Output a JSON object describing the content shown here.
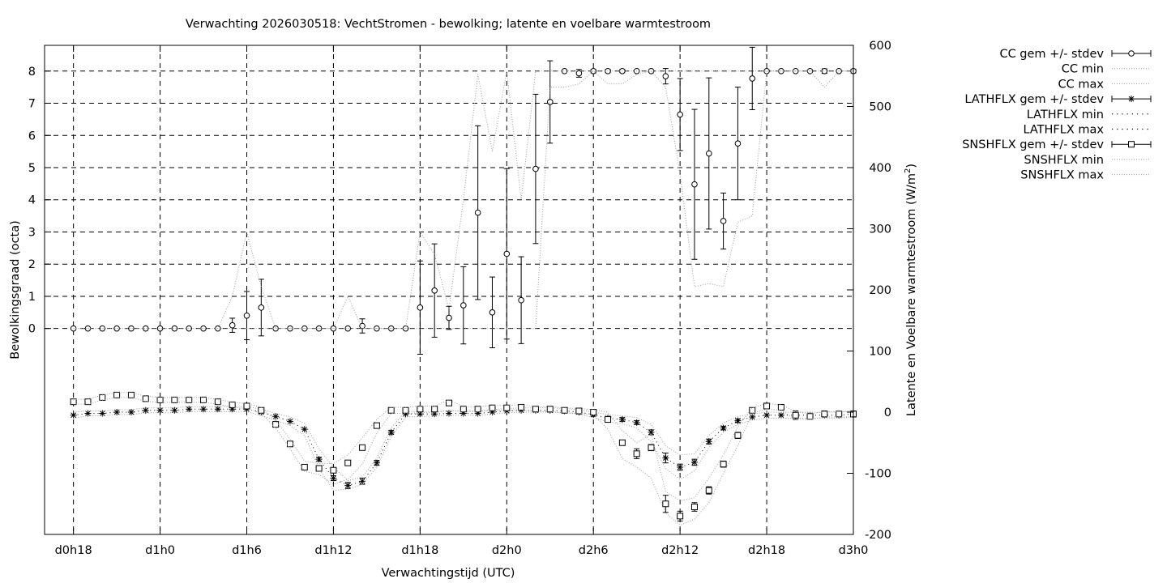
{
  "chart_data": {
    "type": "line",
    "title": "Verwachting 2026030518: VechtStromen - bewolking; latente en voelbare warmtestroom",
    "xlabel": "Verwachtingstijd (UTC)",
    "ylabel_left": "Bewolkingsgraad (octa)",
    "ylabel_right_prefix": "Latente en Voelbare warmtestroom (W/m",
    "ylabel_right_sup": "2",
    "ylabel_right_suffix": ")",
    "x_unit": "hours since d0h00",
    "xlim": [
      16,
      72
    ],
    "ylim_left": [
      -6.4,
      8.8
    ],
    "ylim_right": [
      -200,
      600
    ],
    "grid": true,
    "legend_position": "outside-right",
    "x_ticks": [
      {
        "value": 18,
        "label": "d0h18"
      },
      {
        "value": 24,
        "label": "d1h0"
      },
      {
        "value": 30,
        "label": "d1h6"
      },
      {
        "value": 36,
        "label": "d1h12"
      },
      {
        "value": 42,
        "label": "d1h18"
      },
      {
        "value": 48,
        "label": "d2h0"
      },
      {
        "value": 54,
        "label": "d2h6"
      },
      {
        "value": 60,
        "label": "d2h12"
      },
      {
        "value": 66,
        "label": "d2h18"
      },
      {
        "value": 72,
        "label": "d3h0"
      }
    ],
    "y_ticks_left": [
      "0",
      "1",
      "2",
      "3",
      "4",
      "5",
      "6",
      "7",
      "8"
    ],
    "y_ticks_right": [
      "-200",
      "-100",
      "0",
      "100",
      "200",
      "300",
      "400",
      "500",
      "600"
    ],
    "x": [
      18,
      19,
      20,
      21,
      22,
      23,
      24,
      25,
      26,
      27,
      28,
      29,
      30,
      31,
      32,
      33,
      34,
      35,
      36,
      37,
      38,
      39,
      40,
      41,
      42,
      43,
      44,
      45,
      46,
      47,
      48,
      49,
      50,
      51,
      52,
      53,
      54,
      55,
      56,
      57,
      58,
      59,
      60,
      61,
      62,
      63,
      64,
      65,
      66,
      67,
      68,
      69,
      70,
      71,
      72
    ],
    "series": [
      {
        "name": "CC gem +/- stdev",
        "axis": "left",
        "marker": "circle",
        "values": [
          0,
          0,
          0,
          0,
          0,
          0,
          0,
          0,
          0,
          0,
          0,
          0.1,
          0.4,
          0.65,
          0,
          0,
          0,
          0,
          0,
          0,
          0.08,
          0,
          0,
          0,
          0.65,
          1.18,
          0.33,
          0.72,
          3.6,
          0.5,
          2.32,
          0.88,
          4.96,
          7.04,
          8,
          7.93,
          8,
          8,
          8,
          8,
          8,
          7.84,
          6.65,
          4.48,
          5.44,
          3.34,
          5.75,
          7.77,
          8,
          8,
          8,
          8,
          8,
          8,
          8
        ],
        "err": [
          0,
          0,
          0,
          0,
          0,
          0,
          0,
          0,
          0,
          0,
          0,
          0.22,
          0.75,
          0.88,
          0,
          0,
          0,
          0,
          0,
          0,
          0.22,
          0,
          0,
          0,
          1.45,
          1.45,
          0.36,
          1.2,
          2.7,
          1.1,
          2.65,
          1.35,
          2.32,
          1.28,
          0,
          0.12,
          0.05,
          0.05,
          0.05,
          0,
          0,
          0.24,
          1.12,
          2.33,
          2.35,
          0.87,
          1.75,
          0.97,
          0,
          0,
          0,
          0,
          0.07,
          0,
          0.06
        ]
      },
      {
        "name": "CC min",
        "axis": "left",
        "values": [
          0,
          0,
          0,
          0,
          0,
          0,
          0,
          0,
          0,
          0,
          0,
          0,
          0,
          0,
          0,
          0,
          0,
          0,
          0,
          0,
          0,
          0,
          0,
          0,
          0,
          0,
          0,
          0,
          0,
          0,
          0,
          0,
          0,
          7.5,
          7.5,
          7.6,
          8,
          7.6,
          7.6,
          7.9,
          8,
          7.5,
          4.8,
          1.3,
          1.4,
          1.3,
          3.3,
          3.5,
          8,
          8,
          8,
          8,
          7.5,
          8,
          8
        ]
      },
      {
        "name": "CC max",
        "axis": "left",
        "values": [
          0,
          0,
          0,
          0,
          0,
          0,
          0,
          0,
          0,
          0,
          0,
          1.0,
          3.0,
          1.3,
          0,
          0,
          0,
          0,
          0,
          1.0,
          0,
          0,
          0,
          0,
          3.0,
          2.3,
          0.6,
          4.0,
          7.9,
          5.5,
          8.0,
          4.0,
          8.0,
          8,
          8,
          8,
          8,
          8,
          8,
          8,
          8,
          8,
          8,
          8,
          8,
          8,
          8,
          8,
          8,
          8,
          8,
          8,
          8,
          8,
          8
        ]
      },
      {
        "name": "LATHFLX gem +/- stdev",
        "axis": "right",
        "marker": "star",
        "values": [
          -5,
          -2,
          -2,
          0,
          0,
          3,
          3,
          3,
          5,
          5,
          5,
          5,
          5,
          0,
          -7,
          -15,
          -28,
          -77,
          -108,
          -120,
          -113,
          -83,
          -33,
          -3,
          -3,
          -3,
          -2,
          -2,
          -2,
          0,
          2,
          3,
          3,
          3,
          2,
          0,
          -4,
          -10,
          -12,
          -17,
          -33,
          -75,
          -90,
          -82,
          -48,
          -26,
          -14,
          -8,
          -5,
          -5,
          -5,
          -5,
          -5,
          -5,
          -3
        ],
        "err": [
          0,
          0,
          0,
          0,
          0,
          0,
          0,
          0,
          0,
          0,
          0,
          0,
          0,
          0,
          0,
          0,
          0,
          3,
          4,
          5,
          5,
          4,
          3,
          0,
          0,
          0,
          0,
          0,
          0,
          0,
          0,
          0,
          0,
          0,
          0,
          0,
          3,
          3,
          3,
          3,
          4,
          8,
          5,
          5,
          4,
          3,
          3,
          0,
          0,
          0,
          0,
          0,
          0,
          0,
          0
        ]
      },
      {
        "name": "LATHFLX min",
        "axis": "right",
        "values": [
          -10,
          -6,
          -6,
          -4,
          -4,
          -1,
          -1,
          -1,
          1,
          1,
          1,
          1,
          1,
          -6,
          -13,
          -22,
          -38,
          -92,
          -128,
          -126,
          -118,
          -90,
          -40,
          -8,
          -7,
          -6,
          -5,
          -5,
          -5,
          -3,
          -1,
          0,
          0,
          0,
          -1,
          -3,
          -9,
          -16,
          -19,
          -26,
          -48,
          -92,
          -110,
          -96,
          -58,
          -33,
          -20,
          -13,
          -10,
          -10,
          -10,
          -10,
          -10,
          -10,
          -8
        ]
      },
      {
        "name": "LATHFLX max",
        "axis": "right",
        "values": [
          0,
          2,
          2,
          4,
          4,
          7,
          7,
          7,
          9,
          9,
          9,
          9,
          9,
          5,
          -2,
          -8,
          -18,
          -60,
          -90,
          -112,
          -106,
          -75,
          -26,
          1,
          1,
          1,
          2,
          2,
          2,
          4,
          6,
          7,
          7,
          7,
          6,
          4,
          0,
          -4,
          -6,
          -9,
          -20,
          -55,
          -70,
          -68,
          -38,
          -18,
          -7,
          -3,
          0,
          0,
          0,
          0,
          0,
          0,
          2
        ]
      },
      {
        "name": "SNSHFLX gem +/- stdev",
        "axis": "right",
        "marker": "square",
        "values": [
          17,
          17,
          24,
          28,
          28,
          22,
          20,
          20,
          20,
          20,
          17,
          12,
          10,
          3,
          -20,
          -52,
          -90,
          -92,
          -95,
          -83,
          -58,
          -22,
          3,
          3,
          5,
          5,
          15,
          5,
          5,
          7,
          7,
          8,
          5,
          5,
          3,
          2,
          0,
          -12,
          -50,
          -68,
          -58,
          -150,
          -170,
          -155,
          -128,
          -85,
          -38,
          3,
          10,
          8,
          -5,
          -7,
          -3,
          -3,
          -3
        ],
        "err": [
          0,
          0,
          0,
          0,
          0,
          0,
          0,
          0,
          0,
          0,
          0,
          0,
          0,
          0,
          0,
          0,
          0,
          0,
          0,
          0,
          0,
          0,
          0,
          0,
          0,
          0,
          0,
          0,
          0,
          0,
          0,
          0,
          0,
          0,
          0,
          0,
          0,
          2,
          4,
          8,
          5,
          14,
          8,
          7,
          6,
          5,
          5,
          0,
          0,
          0,
          7,
          0,
          5,
          0,
          5
        ]
      },
      {
        "name": "SNSHFLX min",
        "axis": "right",
        "values": [
          13,
          13,
          20,
          24,
          24,
          18,
          16,
          16,
          16,
          16,
          13,
          8,
          6,
          -2,
          -26,
          -60,
          -97,
          -102,
          -118,
          -110,
          -85,
          -34,
          -2,
          -2,
          -1,
          -1,
          3,
          1,
          1,
          3,
          3,
          4,
          1,
          1,
          -1,
          -2,
          -4,
          -28,
          -76,
          -90,
          -108,
          -165,
          -185,
          -175,
          -148,
          -100,
          -55,
          -2,
          5,
          3,
          -12,
          -12,
          -8,
          -8,
          -8
        ]
      },
      {
        "name": "SNSHFLX max",
        "axis": "right",
        "values": [
          21,
          21,
          28,
          32,
          32,
          26,
          24,
          24,
          24,
          24,
          21,
          16,
          14,
          8,
          -14,
          -44,
          -80,
          -84,
          -84,
          -70,
          -42,
          -12,
          8,
          8,
          10,
          10,
          20,
          9,
          9,
          11,
          11,
          12,
          9,
          9,
          7,
          6,
          4,
          0,
          -30,
          -50,
          -36,
          -130,
          -145,
          -140,
          -108,
          -70,
          -24,
          7,
          14,
          12,
          1,
          -3,
          1,
          1,
          1
        ]
      }
    ]
  }
}
